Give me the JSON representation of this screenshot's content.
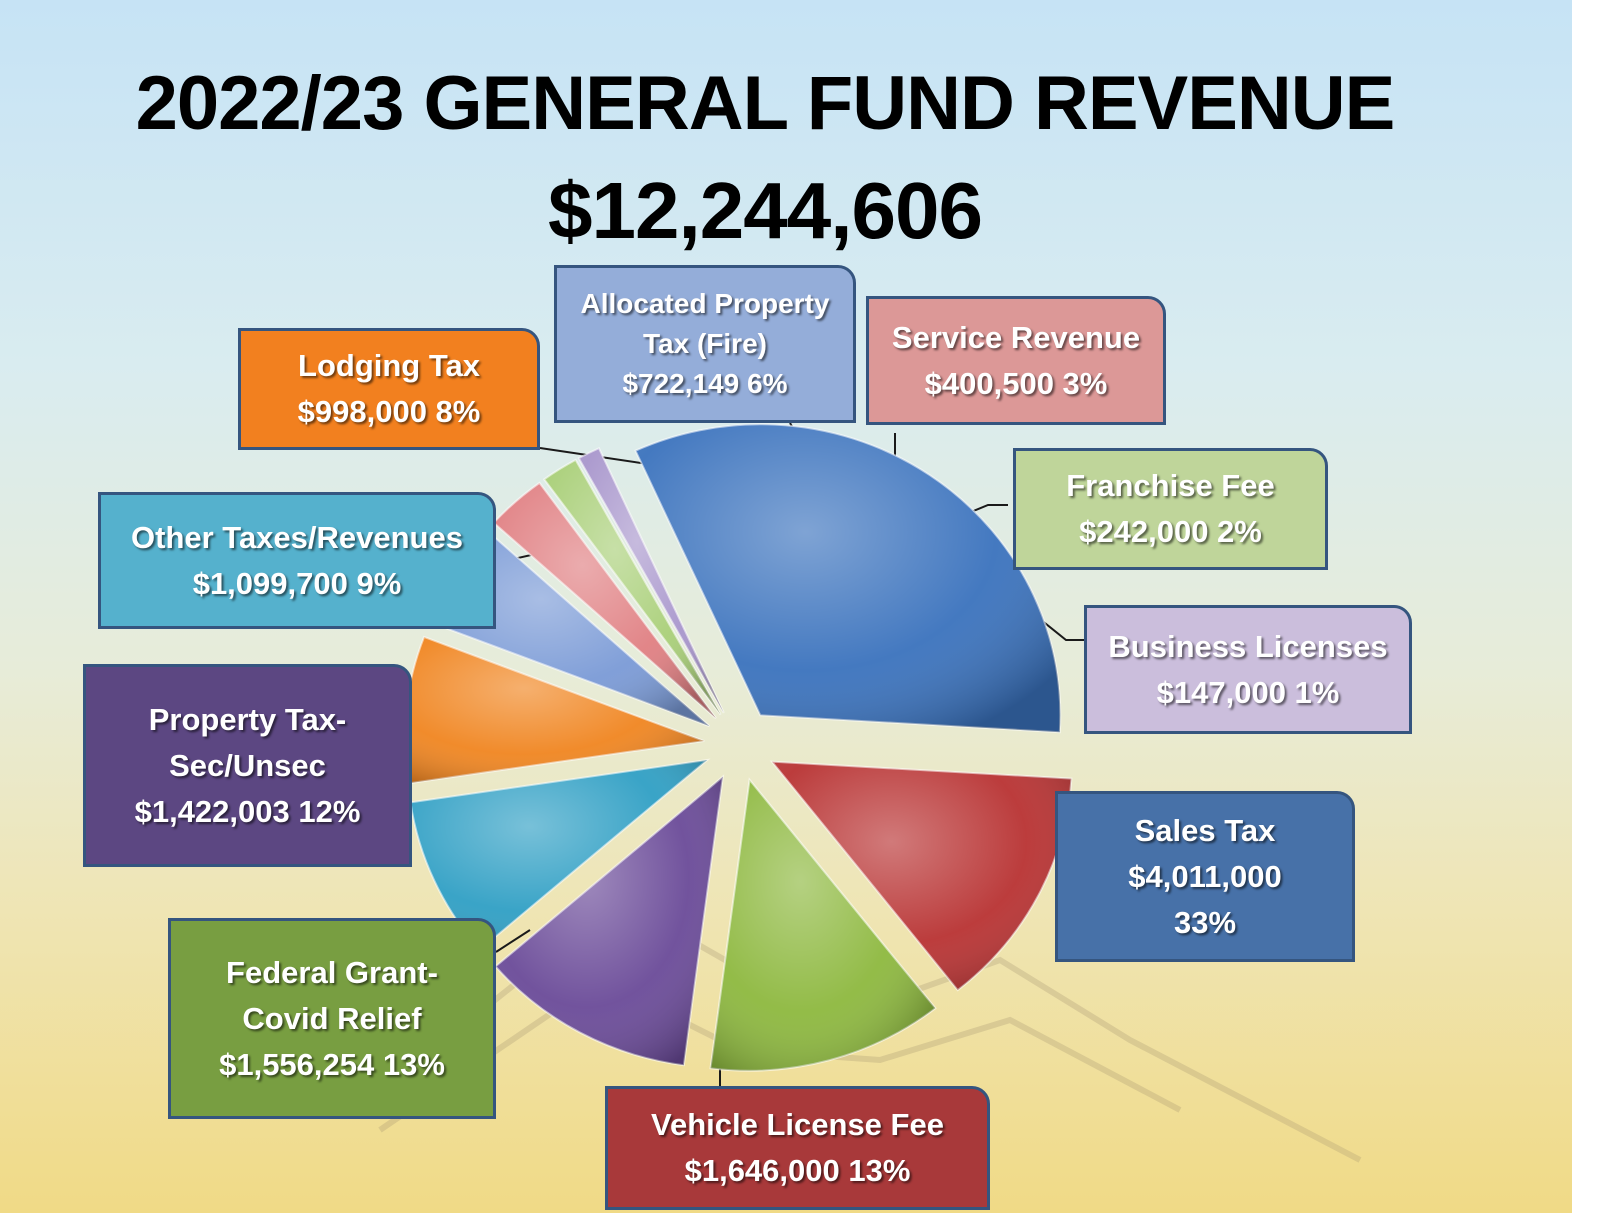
{
  "title": "2022/23 GENERAL FUND REVENUE",
  "total": "$12,244,606",
  "chart_data": {
    "type": "pie",
    "title": "2022/23 GENERAL FUND REVENUE",
    "subtitle": "$12,244,606",
    "exploded": true,
    "slices": [
      {
        "label": "Sales Tax",
        "value": 4011000,
        "amount": "$4,011,000",
        "percent": "33%",
        "color": "#3a72bd"
      },
      {
        "label": "Vehicle License Fee",
        "value": 1646000,
        "amount": "$1,646,000",
        "percent": "13%",
        "color": "#b83232"
      },
      {
        "label": "Federal Grant-Covid Relief",
        "value": 1556254,
        "amount": "$1,556,254",
        "percent": "13%",
        "color": "#8db83e"
      },
      {
        "label": "Property Tax-Sec/Unsec",
        "value": 1422003,
        "amount": "$1,422,003",
        "percent": "12%",
        "color": "#6a4a98"
      },
      {
        "label": "Other Taxes/Revenues",
        "value": 1099700,
        "amount": "$1,099,700",
        "percent": "9%",
        "color": "#2f9fc4"
      },
      {
        "label": "Lodging Tax",
        "value": 998000,
        "amount": "$998,000",
        "percent": "8%",
        "color": "#f08520"
      },
      {
        "label": "Allocated Property Tax (Fire)",
        "value": 722149,
        "amount": "$722,149",
        "percent": "6%",
        "color": "#7a9ad6"
      },
      {
        "label": "Service Revenue",
        "value": 400500,
        "amount": "$400,500",
        "percent": "3%",
        "color": "#e07f82"
      },
      {
        "label": "Franchise Fee",
        "value": 242000,
        "amount": "$242,000",
        "percent": "2%",
        "color": "#a9cf78"
      },
      {
        "label": "Business Licenses",
        "value": 147000,
        "amount": "$147,000",
        "percent": "1%",
        "color": "#a896cc"
      }
    ]
  },
  "callouts": {
    "lodging": {
      "line1": "Lodging Tax",
      "line2": "$998,000  8%",
      "color": "#f2801f"
    },
    "allocated": {
      "line1": "Allocated Property",
      "line2": "Tax (Fire)",
      "line3": "$722,149  6%",
      "color": "#94add9"
    },
    "service": {
      "line1": "Service Revenue",
      "line2": "$400,500  3%",
      "color": "#dc9897"
    },
    "franchise": {
      "line1": "Franchise Fee",
      "line2": "$242,000  2%",
      "color": "#bfd59a"
    },
    "business": {
      "line1": "Business Licenses",
      "line2": "$147,000  1%",
      "color": "#cbbedc"
    },
    "other": {
      "line1": "Other Taxes/Revenues",
      "line2": "$1,099,700  9%",
      "color": "#55b1cd"
    },
    "property": {
      "line1": "Property Tax-",
      "line2": "Sec/Unsec",
      "line3": "$1,422,003  12%",
      "color": "#5c4782"
    },
    "sales": {
      "line1": "Sales Tax",
      "line2": "$4,011,000",
      "line3": "33%",
      "color": "#4771a8"
    },
    "federal": {
      "line1": "Federal Grant-",
      "line2": "Covid Relief",
      "line3": "$1,556,254  13%",
      "color": "#789e41"
    },
    "vehicle": {
      "line1": "Vehicle License Fee",
      "line2": "$1,646,000  13%",
      "color": "#a8393a"
    }
  }
}
